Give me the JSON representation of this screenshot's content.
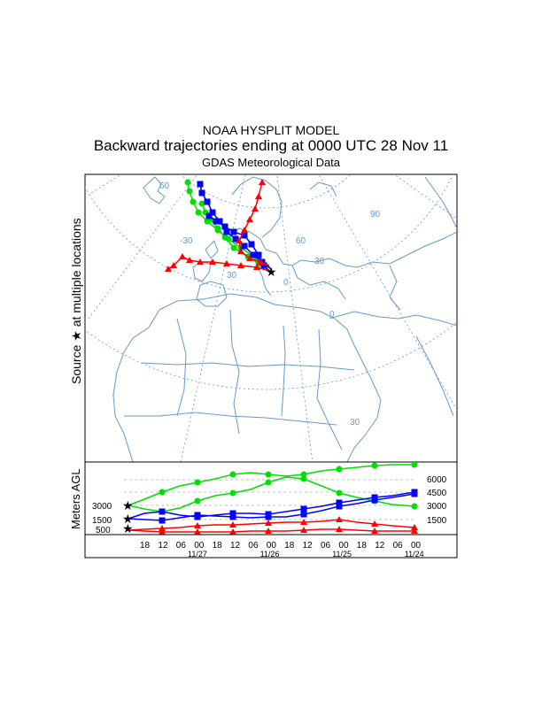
{
  "header": {
    "title": "NOAA HYSPLIT MODEL",
    "subtitle": "Backward trajectories ending at 0000 UTC 28 Nov 11",
    "data_source": "GDAS Meteorological Data"
  },
  "map": {
    "y_label": "Source ★ at multiple locations",
    "grid_labels": [
      "60",
      "90",
      "-30",
      "60",
      "30",
      "30",
      "0",
      "0",
      "30"
    ]
  },
  "altitude_panel": {
    "y_label": "Meters AGL",
    "left_levels": [
      "3000",
      "1500",
      "500"
    ],
    "right_levels": [
      "6000",
      "4500",
      "3000",
      "1500"
    ],
    "hour_labels": [
      "18",
      "12",
      "06",
      "00",
      "18",
      "12",
      "06",
      "00",
      "18",
      "12",
      "06",
      "00",
      "18",
      "12",
      "06",
      "00"
    ],
    "date_labels": [
      "11/27",
      "11/26",
      "11/25",
      "11/24"
    ]
  },
  "colors": {
    "green": "#00e000",
    "blue": "#0000ff",
    "red": "#ff0000",
    "coast": "#6699cc",
    "grid": "#6699cc"
  },
  "trajectories": [
    {
      "color": "red",
      "start_height_m": 500,
      "marker": "triangle"
    },
    {
      "color": "blue",
      "start_height_m": 1500,
      "marker": "square"
    },
    {
      "color": "green",
      "start_height_m": 3000,
      "marker": "circle"
    }
  ]
}
